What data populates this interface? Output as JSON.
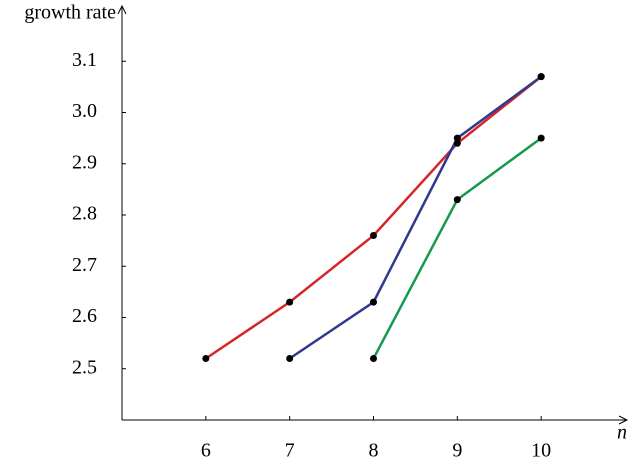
{
  "chart_data": {
    "type": "line",
    "ylabel": "growth rate",
    "xlabel": "n",
    "x": [
      6,
      7,
      8,
      9,
      10
    ],
    "series": [
      {
        "color": "#d62728",
        "values": [
          2.52,
          2.63,
          2.76,
          2.94,
          3.07
        ]
      },
      {
        "color": "#2e3a8c",
        "values": [
          null,
          2.52,
          2.63,
          2.95,
          3.07
        ]
      },
      {
        "color": "#159a4f",
        "values": [
          null,
          null,
          2.52,
          2.83,
          2.95
        ]
      }
    ],
    "xlim": [
      5,
      11
    ],
    "ylim": [
      2.4,
      3.2
    ],
    "xticks": [
      6,
      7,
      8,
      9,
      10
    ],
    "yticks": [
      2.5,
      2.6,
      2.7,
      2.8,
      2.9,
      {
        "value": 3,
        "label": "3.0"
      },
      3.1
    ],
    "marker_color": "#000000"
  }
}
